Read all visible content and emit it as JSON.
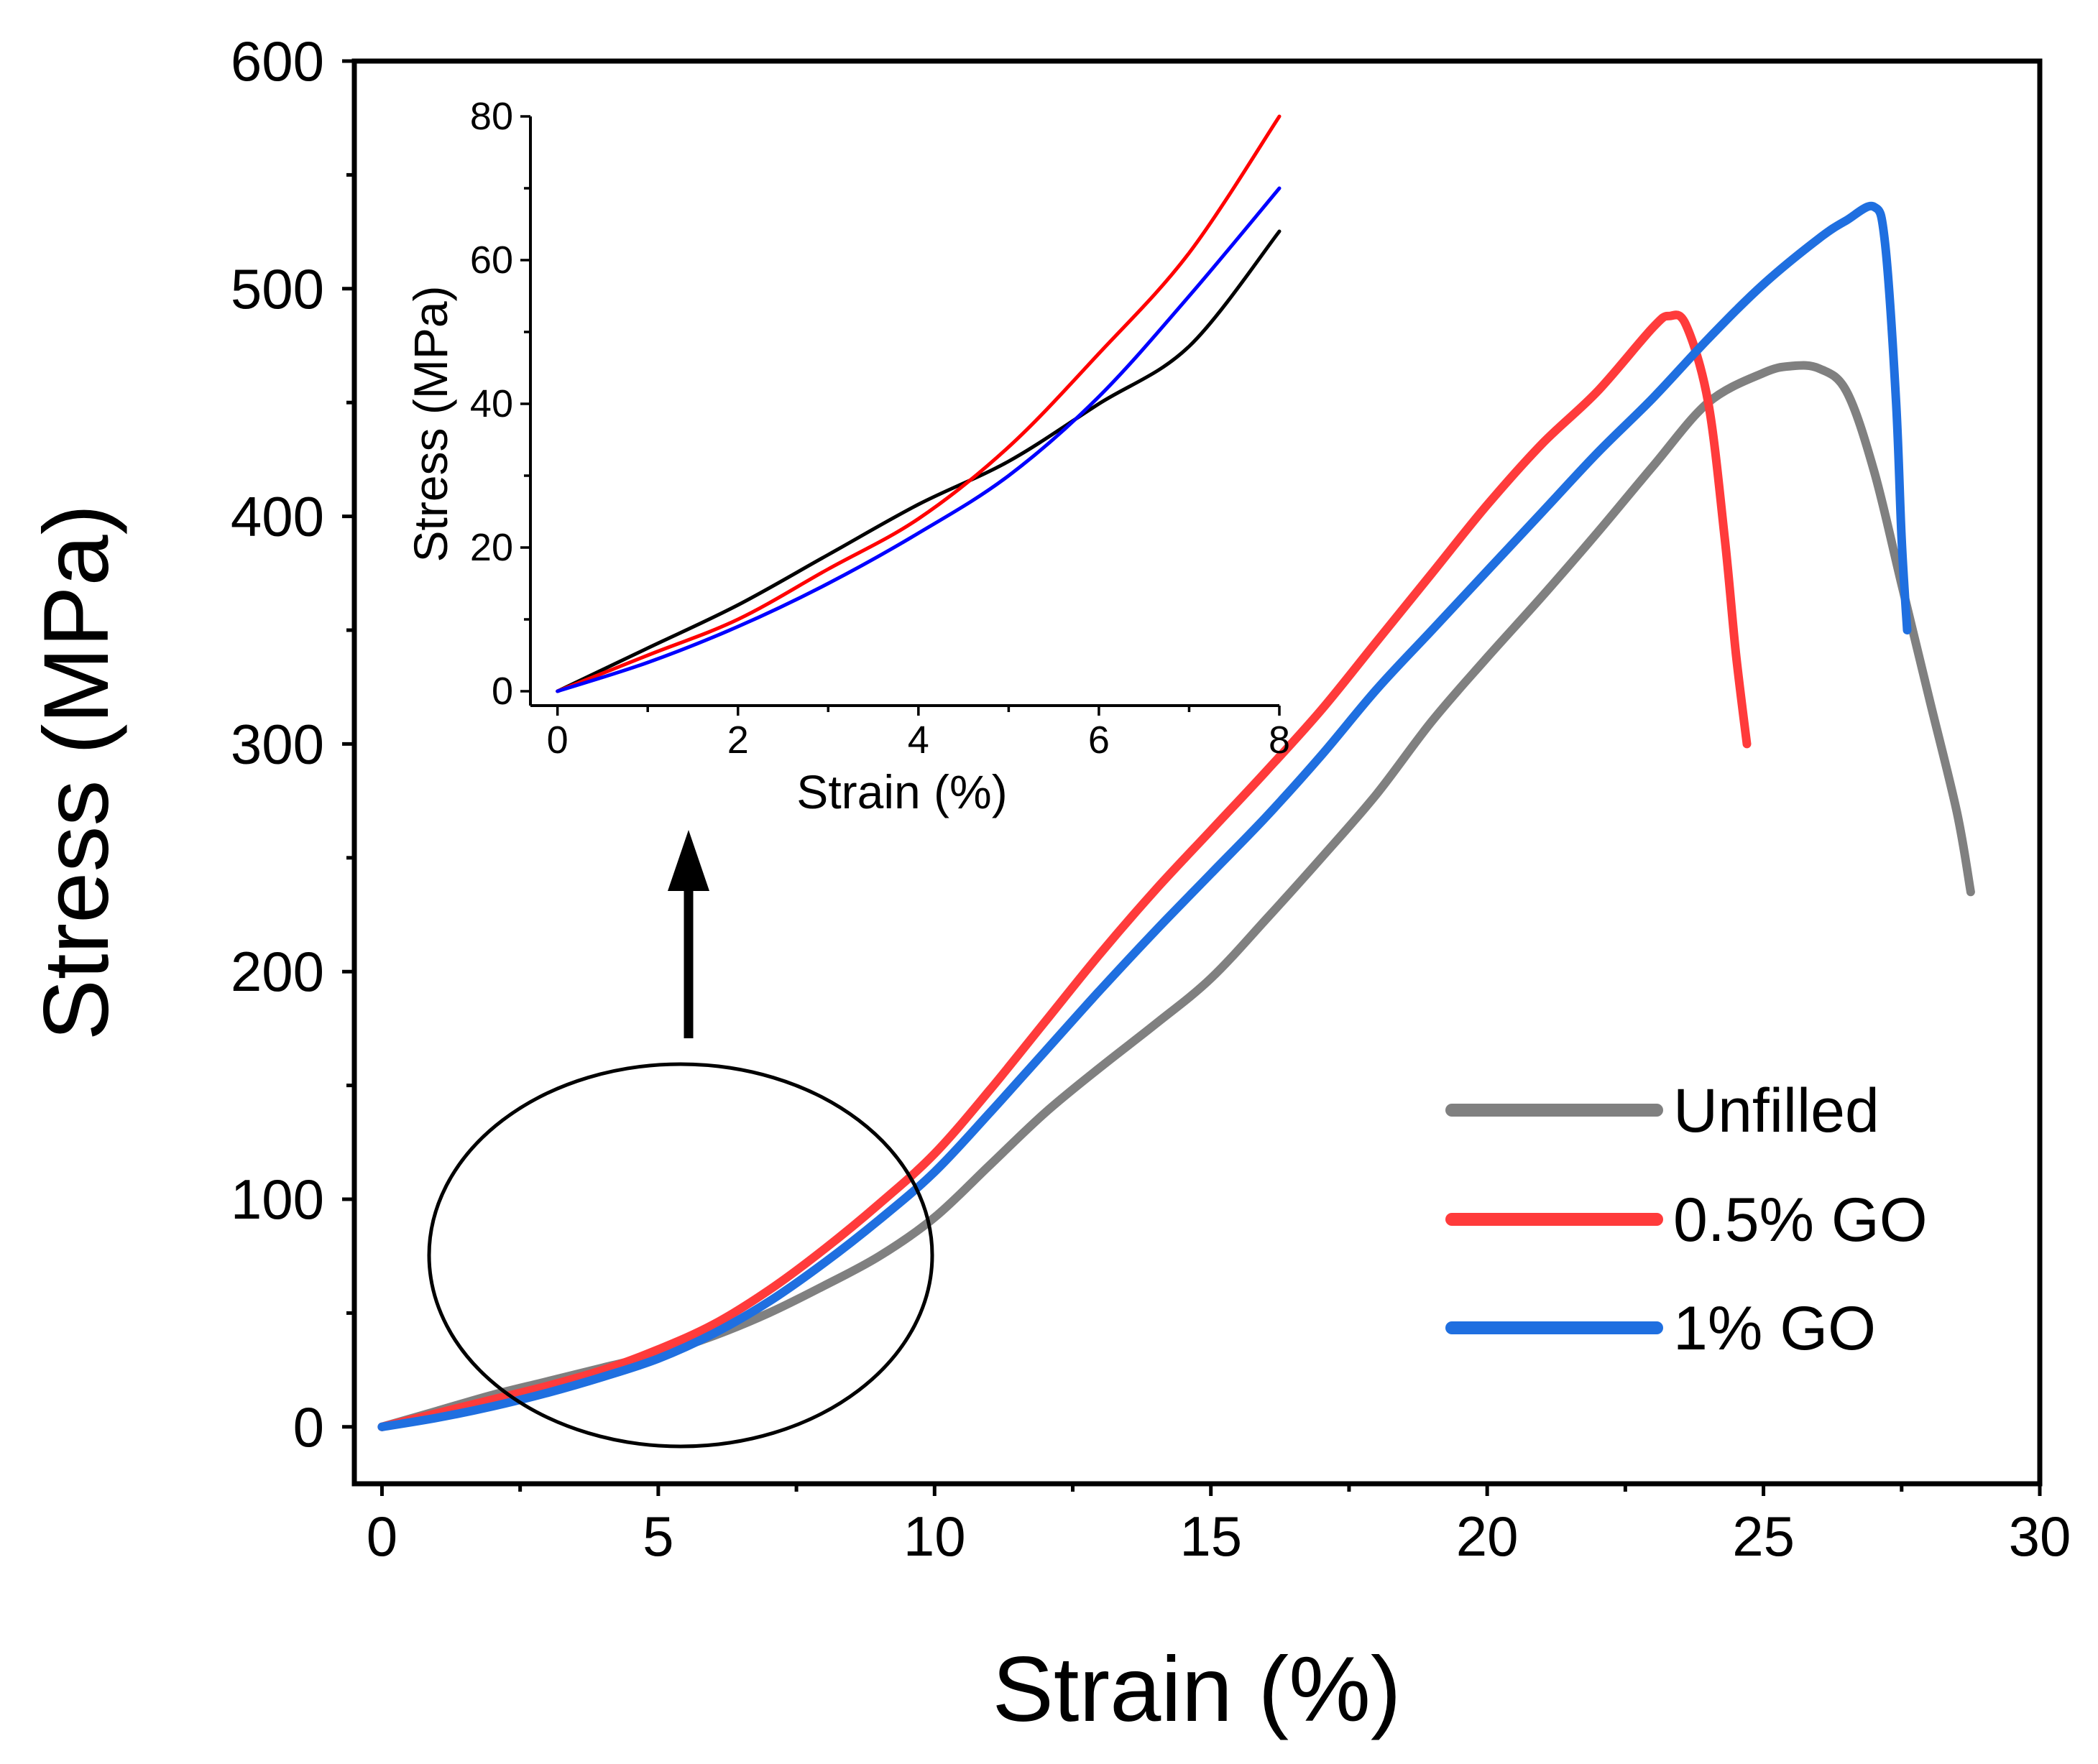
{
  "chart_data": [
    {
      "type": "line",
      "panel": "main",
      "xlabel": "Strain (%)",
      "ylabel": "Stress (MPa)",
      "xlim": [
        -0.5,
        30
      ],
      "ylim": [
        -25,
        600
      ],
      "xticks": [
        0,
        5,
        10,
        15,
        20,
        25,
        30
      ],
      "yticks": [
        0,
        100,
        200,
        300,
        400,
        500,
        600
      ],
      "grid": false,
      "legend_position": "bottom-right",
      "series": [
        {
          "name": "Unfilled",
          "color": "#808080",
          "x": [
            0,
            1,
            2,
            3,
            4,
            5,
            6,
            7,
            8,
            9,
            10,
            11,
            12,
            13,
            14,
            15,
            16,
            17,
            18,
            19,
            20,
            21,
            22,
            23,
            24,
            25,
            25.5,
            26,
            26.5,
            27,
            27.5,
            28,
            28.5,
            28.75
          ],
          "y": [
            0,
            7,
            14,
            20,
            26,
            32,
            40,
            50,
            62,
            75,
            92,
            115,
            138,
            158,
            177,
            197,
            223,
            250,
            278,
            310,
            338,
            365,
            393,
            422,
            450,
            463,
            466,
            465,
            455,
            420,
            370,
            320,
            270,
            235
          ]
        },
        {
          "name": "0.5% GO",
          "color": "#ff3b3b",
          "x": [
            0,
            1,
            2,
            3,
            4,
            5,
            6,
            7,
            8,
            9,
            10,
            11,
            12,
            13,
            14,
            15,
            16,
            17,
            18,
            19,
            20,
            21,
            22,
            23,
            23.3,
            23.6,
            24,
            24.3,
            24.5,
            24.7
          ],
          "y": [
            0,
            6,
            12,
            18,
            25,
            34,
            45,
            60,
            78,
            98,
            120,
            148,
            178,
            208,
            236,
            262,
            288,
            315,
            345,
            375,
            405,
            432,
            455,
            483,
            488,
            484,
            450,
            390,
            340,
            300
          ]
        },
        {
          "name": "1% GO",
          "color": "#1f6fe0",
          "x": [
            0,
            1,
            2,
            3,
            4,
            5,
            6,
            7,
            8,
            9,
            10,
            11,
            12,
            13,
            14,
            15,
            16,
            17,
            18,
            19,
            20,
            21,
            22,
            23,
            24,
            25,
            26,
            26.5,
            27,
            27.2,
            27.4,
            27.5,
            27.6
          ],
          "y": [
            0,
            4,
            9,
            15,
            22,
            30,
            41,
            55,
            72,
            91,
            112,
            138,
            165,
            192,
            218,
            243,
            268,
            295,
            324,
            350,
            376,
            402,
            428,
            452,
            478,
            502,
            522,
            530,
            536,
            520,
            450,
            390,
            350
          ]
        }
      ]
    },
    {
      "type": "line",
      "panel": "inset",
      "xlabel": "Strain (%)",
      "ylabel": "Stress (MPa)",
      "xlim": [
        -0.3,
        8
      ],
      "ylim": [
        -2,
        80
      ],
      "xticks": [
        0,
        2,
        4,
        6,
        8
      ],
      "yticks": [
        0,
        20,
        40,
        60,
        80
      ],
      "grid": false,
      "series": [
        {
          "color": "#000000",
          "x": [
            0,
            1,
            2,
            3,
            4,
            5,
            6,
            7,
            8
          ],
          "y": [
            0,
            6,
            12,
            19,
            26,
            32,
            40,
            48,
            64
          ]
        },
        {
          "color": "#ff0000",
          "x": [
            0,
            1,
            2,
            3,
            4,
            5,
            6,
            7,
            8
          ],
          "y": [
            0,
            5,
            10,
            17,
            24,
            34,
            47,
            61,
            80
          ]
        },
        {
          "color": "#0000ff",
          "x": [
            0,
            1,
            2,
            3,
            4,
            5,
            6,
            7,
            8
          ],
          "y": [
            0,
            4,
            9,
            15,
            22,
            30,
            41,
            55,
            70
          ]
        }
      ]
    }
  ]
}
